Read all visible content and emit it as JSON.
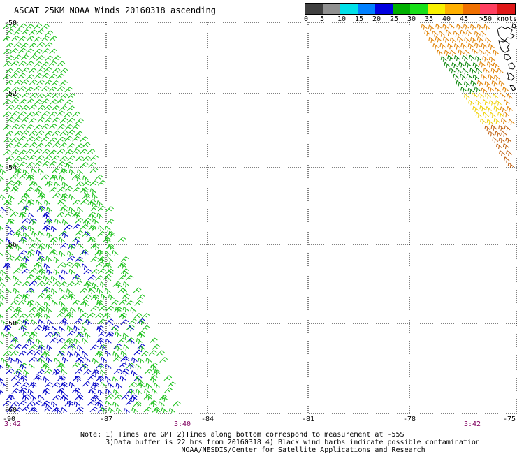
{
  "title": "ASCAT 25KM NOAA Winds 20160318 ascending",
  "legend": {
    "colors": [
      "#404040",
      "#909090",
      "#00e0e8",
      "#0080ff",
      "#0000e0",
      "#00b000",
      "#18e018",
      "#f8f000",
      "#ffb000",
      "#f07000",
      "#ff4060",
      "#e01818",
      "#a00818",
      "#805030",
      "#f0c000",
      "#ff00ff",
      "#a000c0",
      "#500090"
    ],
    "labels": [
      "0",
      "5",
      "10",
      "15",
      "20",
      "25",
      "30",
      "35",
      "40",
      "45",
      ">50 knots"
    ]
  },
  "map": {
    "lat_labels": [
      "-50",
      "-52",
      "-54",
      "-56",
      "-58",
      "-60"
    ],
    "lon_labels": [
      "-90",
      "-87",
      "-84",
      "-81",
      "-78",
      "-75"
    ],
    "time_labels": [
      "3:42",
      "3:40",
      "3:42"
    ],
    "swath_colors": {
      "green": "#18c018",
      "dark_green": "#008000",
      "blue": "#0000c8",
      "yellow": "#f0d000",
      "orange": "#e08000",
      "brown": "#c06010"
    },
    "coast_color": "#000000"
  },
  "notes": [
    "Note: 1) Times are GMT 2)Times along bottom correspond to measurement at -55S",
    "      3)Data buffer is 22 hrs from 20160318 4) Black wind barbs indicate possible contamination",
    "                        NOAA/NESDIS/Center for Satellite Applications and Research"
  ]
}
